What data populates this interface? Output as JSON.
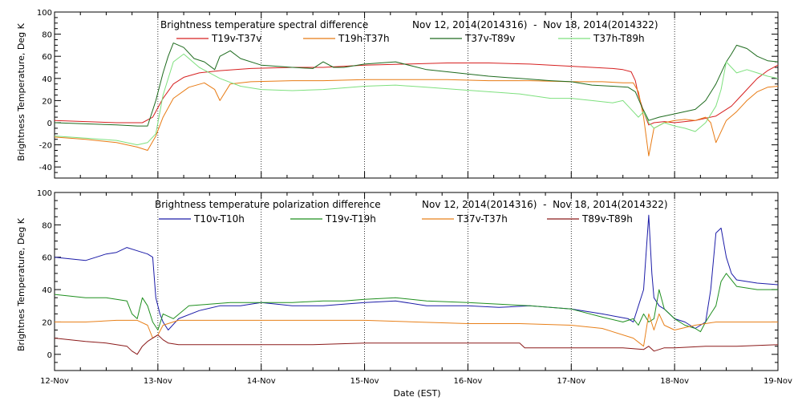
{
  "figure": {
    "xlabel": "Date (EST)",
    "x_tick_labels": [
      "12-Nov",
      "13-Nov",
      "14-Nov",
      "15-Nov",
      "16-Nov",
      "17-Nov",
      "18-Nov",
      "19-Nov"
    ]
  },
  "chart_data": [
    {
      "type": "line",
      "title": "Brightness temperature spectral difference",
      "date_range": "Nov 12, 2014(2014316)  -  Nov 18, 2014(2014322)",
      "xlabel": "Date (EST)",
      "ylabel": "Brightness Temperature, Deg K",
      "x_unit": "days since 12-Nov",
      "xlim": [
        0,
        7
      ],
      "ylim": [
        -50,
        100
      ],
      "y_ticks": [
        -40,
        -20,
        0,
        20,
        40,
        60,
        80,
        100
      ],
      "grid": "dotted vertical at each day",
      "series": [
        {
          "name": "T19v-T37v",
          "color": "#d62020",
          "x": [
            0,
            0.3,
            0.6,
            0.85,
            0.95,
            1.05,
            1.15,
            1.25,
            1.4,
            1.6,
            1.9,
            2.3,
            2.6,
            2.8,
            3.0,
            3.4,
            3.8,
            4.2,
            4.6,
            5.0,
            5.2,
            5.4,
            5.5,
            5.58,
            5.62,
            5.65,
            5.7,
            5.75,
            5.8,
            5.9,
            6.0,
            6.2,
            6.4,
            6.55,
            6.6,
            6.7,
            6.8,
            6.9,
            7.0
          ],
          "y": [
            2,
            1,
            0,
            0,
            5,
            22,
            35,
            41,
            45,
            47,
            49,
            50,
            50,
            51,
            52,
            53,
            54,
            54,
            53,
            51,
            50,
            49,
            48,
            46,
            38,
            25,
            10,
            -2,
            0,
            1,
            0,
            2,
            6,
            15,
            20,
            30,
            40,
            47,
            52
          ]
        },
        {
          "name": "T19h-T37h",
          "color": "#e87b14",
          "x": [
            0,
            0.3,
            0.6,
            0.8,
            0.9,
            0.98,
            1.05,
            1.15,
            1.3,
            1.45,
            1.55,
            1.6,
            1.7,
            1.9,
            2.3,
            2.6,
            3.0,
            3.4,
            3.8,
            4.2,
            4.6,
            5.0,
            5.3,
            5.5,
            5.6,
            5.65,
            5.7,
            5.75,
            5.8,
            5.9,
            6.0,
            6.1,
            6.2,
            6.3,
            6.35,
            6.4,
            6.5,
            6.6,
            6.7,
            6.8,
            6.9,
            7.0
          ],
          "y": [
            -13,
            -15,
            -18,
            -22,
            -25,
            -12,
            5,
            22,
            32,
            36,
            30,
            20,
            35,
            37,
            38,
            38,
            39,
            39,
            39,
            38,
            38,
            37,
            37,
            36,
            36,
            28,
            5,
            -30,
            -5,
            0,
            2,
            3,
            2,
            5,
            0,
            -18,
            2,
            10,
            20,
            28,
            32,
            33
          ]
        },
        {
          "name": "T37v-T89v",
          "color": "#1e6b1e",
          "x": [
            0,
            0.3,
            0.6,
            0.8,
            0.9,
            0.98,
            1.05,
            1.1,
            1.15,
            1.25,
            1.35,
            1.45,
            1.55,
            1.6,
            1.7,
            1.8,
            2.0,
            2.3,
            2.5,
            2.6,
            2.7,
            2.8,
            3.0,
            3.3,
            3.6,
            3.9,
            4.2,
            4.5,
            4.8,
            5.0,
            5.2,
            5.4,
            5.55,
            5.62,
            5.68,
            5.75,
            5.85,
            6.0,
            6.2,
            6.3,
            6.4,
            6.5,
            6.55,
            6.6,
            6.7,
            6.8,
            6.9,
            7.0
          ],
          "y": [
            0,
            -1,
            -2,
            -3,
            -3,
            20,
            45,
            60,
            72,
            68,
            58,
            55,
            48,
            60,
            65,
            58,
            52,
            50,
            49,
            55,
            50,
            50,
            53,
            55,
            48,
            45,
            42,
            40,
            38,
            37,
            34,
            33,
            32,
            28,
            15,
            2,
            5,
            8,
            12,
            20,
            35,
            55,
            62,
            70,
            67,
            60,
            56,
            55
          ]
        },
        {
          "name": "T37h-T89h",
          "color": "#7ee07e",
          "x": [
            0,
            0.3,
            0.6,
            0.8,
            0.9,
            0.98,
            1.05,
            1.15,
            1.25,
            1.4,
            1.6,
            1.8,
            2.0,
            2.3,
            2.6,
            3.0,
            3.3,
            3.6,
            3.9,
            4.2,
            4.5,
            4.8,
            5.0,
            5.2,
            5.4,
            5.5,
            5.55,
            5.6,
            5.65,
            5.7,
            5.75,
            5.8,
            5.9,
            6.0,
            6.1,
            6.2,
            6.3,
            6.4,
            6.45,
            6.5,
            6.55,
            6.6,
            6.7,
            6.8,
            6.9,
            7.0
          ],
          "y": [
            -12,
            -14,
            -16,
            -20,
            -18,
            -10,
            25,
            55,
            62,
            50,
            40,
            33,
            30,
            29,
            30,
            33,
            34,
            32,
            30,
            28,
            26,
            22,
            22,
            20,
            18,
            20,
            15,
            10,
            5,
            10,
            0,
            -5,
            0,
            -3,
            -5,
            -8,
            0,
            15,
            30,
            55,
            50,
            45,
            48,
            45,
            42,
            40
          ]
        }
      ]
    },
    {
      "type": "line",
      "title": "Brightness temperature polarization difference",
      "date_range": "Nov 12, 2014(2014316)  -  Nov 18, 2014(2014322)",
      "xlabel": "Date (EST)",
      "ylabel": "Brightnes Temperature, Deg K",
      "x_unit": "days since 12-Nov",
      "xlim": [
        0,
        7
      ],
      "ylim": [
        -10,
        100
      ],
      "y_ticks": [
        0,
        20,
        40,
        60,
        80,
        100
      ],
      "grid": "dotted vertical at each day",
      "series": [
        {
          "name": "T10v-T10h",
          "color": "#1c1ca8",
          "x": [
            0,
            0.3,
            0.5,
            0.6,
            0.7,
            0.8,
            0.85,
            0.9,
            0.95,
            0.98,
            1.02,
            1.05,
            1.1,
            1.2,
            1.4,
            1.6,
            1.8,
            2.0,
            2.3,
            2.6,
            3.0,
            3.3,
            3.6,
            4.0,
            4.3,
            4.6,
            5.0,
            5.3,
            5.55,
            5.6,
            5.7,
            5.75,
            5.78,
            5.8,
            5.85,
            5.9,
            6.0,
            6.1,
            6.2,
            6.3,
            6.35,
            6.4,
            6.45,
            6.5,
            6.55,
            6.6,
            6.8,
            7.0
          ],
          "y": [
            60,
            58,
            62,
            63,
            66,
            64,
            63,
            62,
            60,
            35,
            25,
            20,
            15,
            22,
            27,
            30,
            30,
            32,
            30,
            30,
            32,
            33,
            30,
            30,
            29,
            30,
            28,
            25,
            22,
            20,
            40,
            86,
            50,
            35,
            30,
            28,
            22,
            20,
            16,
            20,
            40,
            75,
            78,
            60,
            50,
            46,
            44,
            43
          ]
        },
        {
          "name": "T19v-T19h",
          "color": "#1f8f1f",
          "x": [
            0,
            0.3,
            0.5,
            0.6,
            0.7,
            0.75,
            0.8,
            0.85,
            0.9,
            0.95,
            1.0,
            1.05,
            1.15,
            1.3,
            1.5,
            1.7,
            2.0,
            2.3,
            2.6,
            2.8,
            3.0,
            3.3,
            3.6,
            4.0,
            4.3,
            4.6,
            5.0,
            5.3,
            5.5,
            5.6,
            5.65,
            5.7,
            5.75,
            5.8,
            5.85,
            5.9,
            6.0,
            6.1,
            6.2,
            6.25,
            6.3,
            6.35,
            6.4,
            6.45,
            6.5,
            6.6,
            6.8,
            7.0
          ],
          "y": [
            37,
            35,
            35,
            34,
            33,
            25,
            22,
            35,
            30,
            20,
            15,
            25,
            22,
            30,
            31,
            32,
            32,
            32,
            33,
            33,
            34,
            35,
            33,
            32,
            31,
            30,
            28,
            23,
            20,
            22,
            18,
            25,
            20,
            22,
            40,
            28,
            22,
            18,
            16,
            14,
            20,
            25,
            30,
            45,
            50,
            42,
            40,
            40
          ]
        },
        {
          "name": "T37v-T37h",
          "color": "#e8801a",
          "x": [
            0,
            0.3,
            0.6,
            0.8,
            0.9,
            0.95,
            1.0,
            1.05,
            1.2,
            1.5,
            1.8,
            2.0,
            2.5,
            3.0,
            3.5,
            4.0,
            4.5,
            5.0,
            5.3,
            5.6,
            5.7,
            5.75,
            5.8,
            5.85,
            5.9,
            6.0,
            6.2,
            6.4,
            6.6,
            6.8,
            7.0
          ],
          "y": [
            20,
            20,
            21,
            21,
            18,
            10,
            12,
            18,
            21,
            21,
            21,
            21,
            21,
            21,
            20,
            19,
            19,
            18,
            16,
            10,
            5,
            25,
            15,
            25,
            18,
            15,
            18,
            20,
            20,
            20,
            20
          ]
        },
        {
          "name": "T89v-T89h",
          "color": "#8b1a1a",
          "x": [
            0,
            0.3,
            0.5,
            0.7,
            0.75,
            0.8,
            0.85,
            0.9,
            0.95,
            1.0,
            1.05,
            1.1,
            1.2,
            1.4,
            1.6,
            1.8,
            2.0,
            2.5,
            3.0,
            3.5,
            4.0,
            4.5,
            4.55,
            4.6,
            5.0,
            5.5,
            5.7,
            5.75,
            5.8,
            5.85,
            5.9,
            6.0,
            6.3,
            6.6,
            7.0
          ],
          "y": [
            10,
            8,
            7,
            5,
            2,
            0,
            5,
            8,
            10,
            12,
            9,
            7,
            6,
            6,
            6,
            6,
            6,
            6,
            7,
            7,
            7,
            7,
            4,
            4,
            4,
            4,
            3,
            5,
            2,
            3,
            4,
            4,
            5,
            5,
            6
          ]
        }
      ]
    }
  ]
}
